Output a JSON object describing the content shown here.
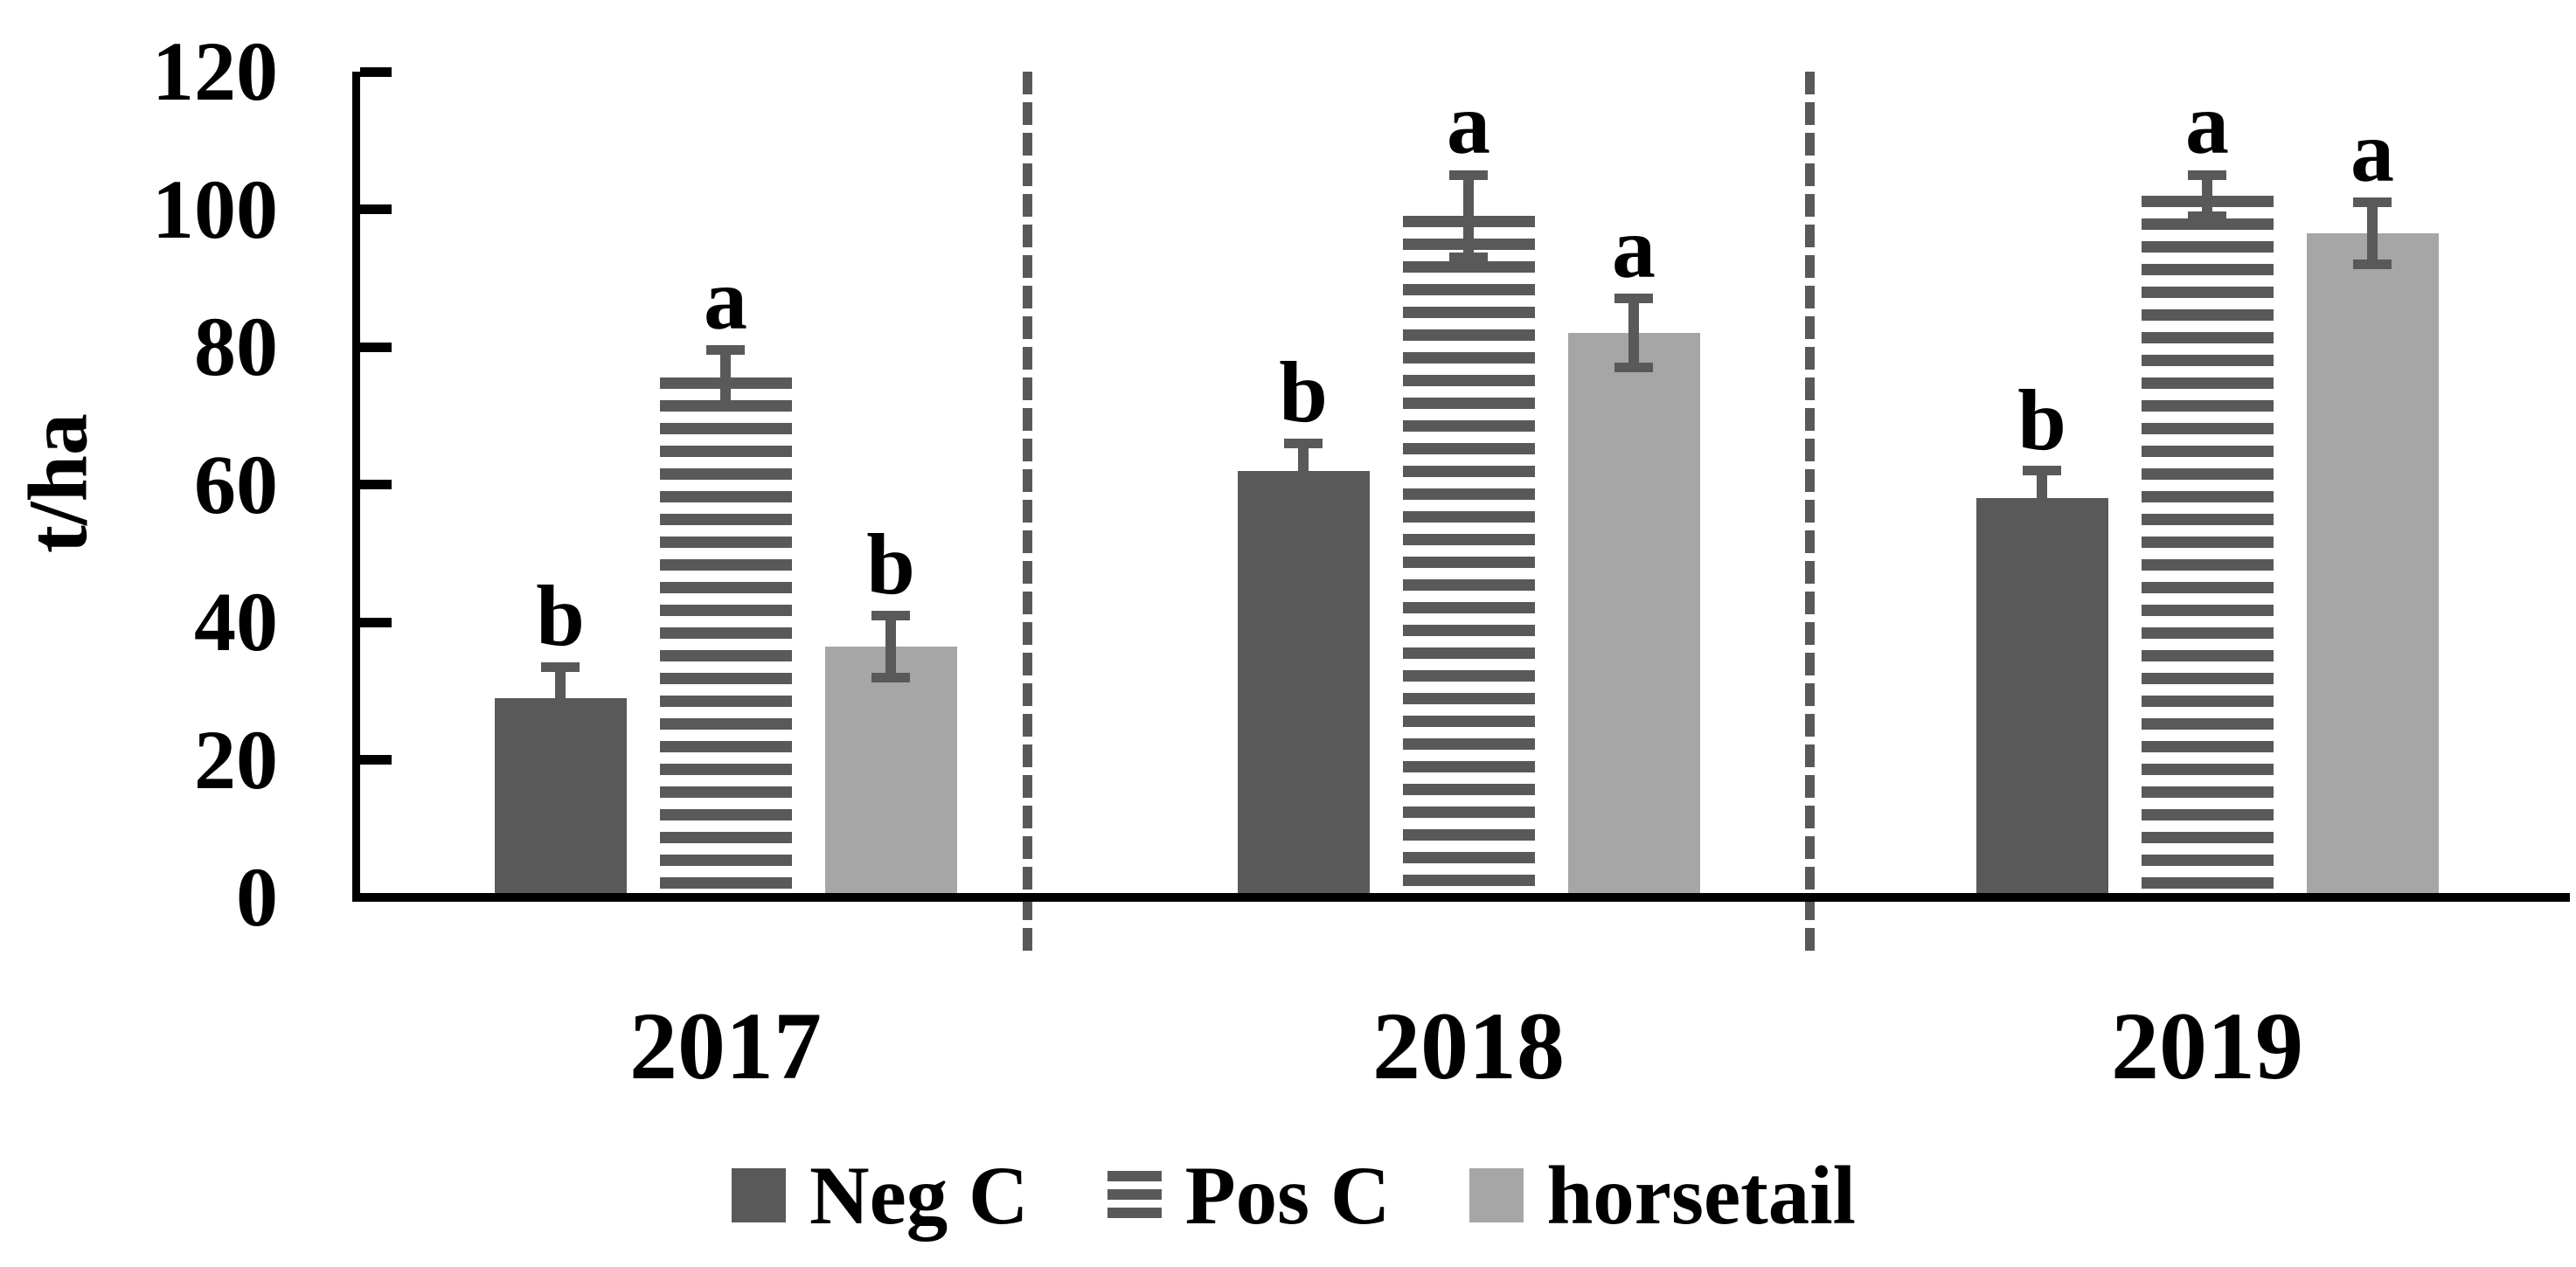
{
  "chart_data": {
    "type": "bar",
    "title": "",
    "xlabel": "",
    "ylabel": "t/ha",
    "ylim": [
      0,
      120
    ],
    "yticks": [
      0,
      20,
      40,
      60,
      80,
      100,
      120
    ],
    "grid": false,
    "legend_position": "bottom",
    "categories": [
      "2017",
      "2018",
      "2019"
    ],
    "series": [
      {
        "name": "Neg C",
        "pattern": "solid",
        "color": "#595959",
        "values": [
          29,
          62,
          58
        ],
        "errors": [
          4.5,
          4,
          4
        ],
        "sig_letters": [
          "b",
          "b",
          "b"
        ]
      },
      {
        "name": "Pos C",
        "pattern": "horizontal-stripes",
        "color": "#595959",
        "values": [
          75.5,
          99,
          102
        ],
        "errors": [
          4,
          6,
          3
        ],
        "sig_letters": [
          "a",
          "a",
          "a"
        ]
      },
      {
        "name": "horsetail",
        "pattern": "solid",
        "color": "#a6a6a6",
        "values": [
          36.5,
          82,
          96.5
        ],
        "errors": [
          4.5,
          5,
          4.5
        ],
        "sig_letters": [
          "b",
          "a",
          "a"
        ]
      }
    ],
    "group_separators": {
      "style": "dashed",
      "color": "#595959",
      "description": "vertical dashed lines between year groups"
    }
  },
  "colors": {
    "axis": "#000000",
    "error_bar": "#595959",
    "separator": "#595959",
    "background": "#ffffff",
    "dark_series": "#595959",
    "light_series": "#a6a6a6"
  }
}
